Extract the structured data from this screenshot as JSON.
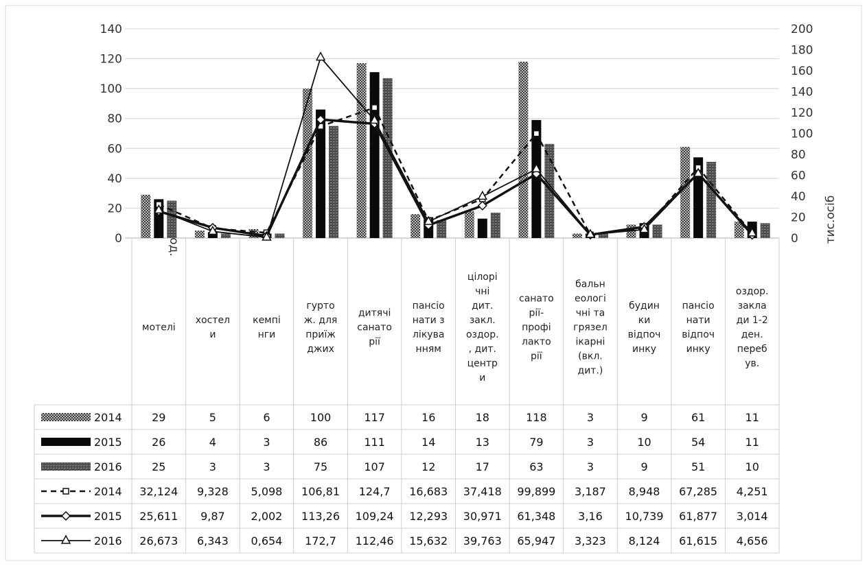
{
  "chart_data": {
    "type": "bar",
    "y_left": {
      "label": "од.",
      "ylim": [
        0,
        140
      ],
      "ticks": [
        "0",
        "20",
        "40",
        "60",
        "80",
        "100",
        "120",
        "140"
      ]
    },
    "y_right": {
      "label": "тис.осіб",
      "ylim": [
        0,
        200
      ],
      "ticks": [
        "0",
        "20",
        "40",
        "60",
        "80",
        "100",
        "120",
        "140",
        "160",
        "180",
        "200"
      ]
    },
    "grid": true,
    "categories": [
      [
        "мотелі"
      ],
      [
        "хостел",
        "и"
      ],
      [
        "кемпі",
        "нги"
      ],
      [
        "гурто",
        "ж. для",
        "приїж",
        "джих"
      ],
      [
        "дитячі",
        "санато",
        "рії"
      ],
      [
        "пансіо",
        "нати з",
        "лікува",
        "нням"
      ],
      [
        "цілорі",
        "чні",
        "дит.",
        "закл.",
        "оздор.",
        ", дит.",
        "центр",
        "и"
      ],
      [
        "санато",
        "рії-",
        "профі",
        "лакто",
        "рії"
      ],
      [
        "бальн",
        "еологі",
        "чні та",
        "грязел",
        "ікарні",
        "(вкл.",
        "дит.)"
      ],
      [
        "будин",
        "ки",
        "відпоч",
        "инку"
      ],
      [
        "пансіо",
        "нати",
        "відпоч",
        "инку"
      ],
      [
        "оздор.",
        "закла",
        "ди 1-2",
        "ден.",
        "переб",
        "ув."
      ]
    ],
    "bar_series": [
      {
        "name": "2014",
        "axis": "left",
        "color": "#8a8a8a",
        "pattern": "checker",
        "values": [
          29,
          5,
          6,
          100,
          117,
          16,
          18,
          118,
          3,
          9,
          61,
          11
        ],
        "labels": [
          "29",
          "5",
          "6",
          "100",
          "117",
          "16",
          "18",
          "118",
          "3",
          "9",
          "61",
          "11"
        ]
      },
      {
        "name": "2015",
        "axis": "left",
        "color": "#0a0a0a",
        "pattern": "solid",
        "values": [
          26,
          4,
          3,
          86,
          111,
          14,
          13,
          79,
          3,
          10,
          54,
          11
        ],
        "labels": [
          "26",
          "4",
          "3",
          "86",
          "111",
          "14",
          "13",
          "79",
          "3",
          "10",
          "54",
          "11"
        ]
      },
      {
        "name": "2016",
        "axis": "left",
        "color": "#555555",
        "pattern": "stripe",
        "values": [
          25,
          3,
          3,
          75,
          107,
          12,
          17,
          63,
          3,
          9,
          51,
          10
        ],
        "labels": [
          "25",
          "3",
          "3",
          "75",
          "107",
          "12",
          "17",
          "63",
          "3",
          "9",
          "51",
          "10"
        ]
      }
    ],
    "line_series": [
      {
        "name": "2014",
        "axis": "right",
        "marker": "square",
        "dash": "8,6",
        "width": 2.5,
        "values": [
          32.124,
          9.328,
          5.098,
          106.81,
          124.7,
          16.683,
          37.418,
          99.899,
          3.187,
          8.948,
          67.285,
          4.251
        ],
        "labels": [
          "32,124",
          "9,328",
          "5,098",
          "106,81",
          "124,7",
          "16,683",
          "37,418",
          "99,899",
          "3,187",
          "8,948",
          "67,285",
          "4,251"
        ]
      },
      {
        "name": "2015",
        "axis": "right",
        "marker": "diamond",
        "dash": "",
        "width": 3.5,
        "values": [
          25.611,
          9.87,
          2.002,
          113.26,
          109.24,
          12.293,
          30.971,
          61.348,
          3.16,
          10.739,
          61.877,
          3.014
        ],
        "labels": [
          "25,611",
          "9,87",
          "2,002",
          "113,26",
          "109,24",
          "12,293",
          "30,971",
          "61,348",
          "3,16",
          "10,739",
          "61,877",
          "3,014"
        ]
      },
      {
        "name": "2016",
        "axis": "right",
        "marker": "triangle",
        "dash": "",
        "width": 1.8,
        "values": [
          26.673,
          6.343,
          0.654,
          172.7,
          112.46,
          15.632,
          39.763,
          65.947,
          3.323,
          8.124,
          61.615,
          4.656
        ],
        "labels": [
          "26,673",
          "6,343",
          "0,654",
          "172,7",
          "112,46",
          "15,632",
          "39,763",
          "65,947",
          "3,323",
          "8,124",
          "61,615",
          "4,656"
        ]
      }
    ]
  }
}
